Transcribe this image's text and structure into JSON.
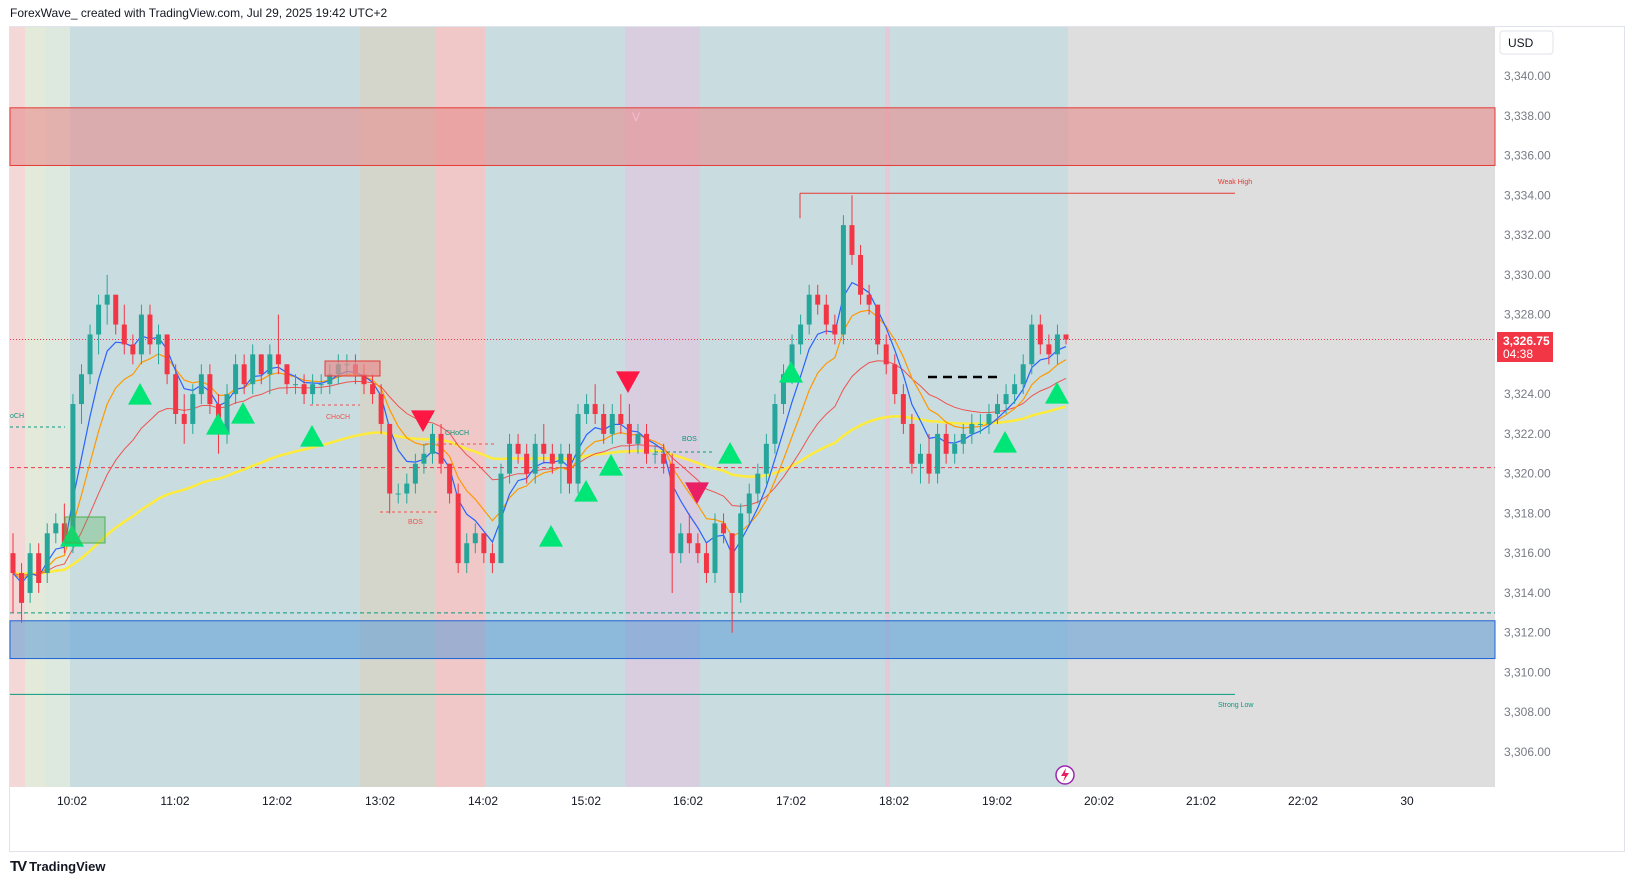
{
  "header": {
    "title": "ForexWave_ created with TradingView.com, Jul 29, 2025 19:42 UTC+2"
  },
  "footer": {
    "logo_text": "TradingView",
    "logo_mark": "TV"
  },
  "currency": "USD",
  "last_price": "3,326.75",
  "countdown": "04:38",
  "colors": {
    "up": "#26a69a",
    "down": "#f23645",
    "ema_fast": "#2962ff",
    "ema_mid": "#ff9800",
    "ema_slow": "#ef5350",
    "ema_long": "#ffeb3b",
    "supply_zone": "#e88c8c",
    "demand_zone": "#5b9bd5",
    "signal_up": "#00e676",
    "signal_down": "#ff1744"
  },
  "annotations": {
    "weak_high": "Weak High",
    "strong_low": "Strong Low",
    "choch_left": "oCH",
    "choch_1": "CHoCH",
    "choch_2": "CHoCH",
    "bos_1": "BOS",
    "bos_2": "BOS",
    "v_mark": "V"
  },
  "chart_data": {
    "type": "candlestick",
    "title": "",
    "y_axis": {
      "ylim": [
        3305,
        3342
      ],
      "ticks": [
        "3,306.00",
        "3,308.00",
        "3,310.00",
        "3,312.00",
        "3,314.00",
        "3,316.00",
        "3,318.00",
        "3,320.00",
        "3,322.00",
        "3,324.00",
        "3,326.00",
        "3,328.00",
        "3,330.00",
        "3,332.00",
        "3,334.00",
        "3,336.00",
        "3,338.00",
        "3,340.00"
      ],
      "tick_values": [
        3306,
        3308,
        3310,
        3312,
        3314,
        3316,
        3318,
        3320,
        3322,
        3324,
        3326,
        3328,
        3330,
        3332,
        3334,
        3336,
        3338,
        3340
      ]
    },
    "x_axis": {
      "ticks": [
        "10:02",
        "11:02",
        "12:02",
        "13:02",
        "14:02",
        "15:02",
        "16:02",
        "17:02",
        "18:02",
        "19:02",
        "20:02",
        "21:02",
        "22:02",
        "30"
      ]
    },
    "zones": [
      {
        "name": "supply",
        "top": 3338.4,
        "bottom": 3335.5
      },
      {
        "name": "demand",
        "top": 3312.6,
        "bottom": 3310.7
      }
    ],
    "levels": [
      {
        "name": "weak-high",
        "value": 3334.1
      },
      {
        "name": "strong-low",
        "value": 3308.9
      },
      {
        "name": "current-price",
        "value": 3326.75
      },
      {
        "name": "red-dashed",
        "value": 3320.3
      },
      {
        "name": "green-dashed",
        "value": 3313.0
      }
    ],
    "candles": [
      [
        3316.0,
        3317.0,
        3313.0,
        3315.0
      ],
      [
        3315.0,
        3315.5,
        3312.5,
        3313.5
      ],
      [
        3314.0,
        3316.5,
        3313.5,
        3316.0
      ],
      [
        3316.0,
        3316.5,
        3314.0,
        3314.5
      ],
      [
        3315.0,
        3317.5,
        3314.5,
        3317.0
      ],
      [
        3317.0,
        3318.0,
        3316.5,
        3317.5
      ],
      [
        3317.5,
        3318.5,
        3316.0,
        3316.5
      ],
      [
        3316.5,
        3324.0,
        3316.0,
        3323.5
      ],
      [
        3323.5,
        3325.5,
        3322.5,
        3325.0
      ],
      [
        3325.0,
        3327.5,
        3324.5,
        3327.0
      ],
      [
        3327.0,
        3329.0,
        3326.0,
        3328.5
      ],
      [
        3328.5,
        3330.0,
        3327.5,
        3329.0
      ],
      [
        3329.0,
        3329.0,
        3327.0,
        3327.5
      ],
      [
        3327.5,
        3328.5,
        3326.0,
        3326.5
      ],
      [
        3326.5,
        3327.0,
        3325.5,
        3326.0
      ],
      [
        3326.0,
        3328.5,
        3325.5,
        3328.0
      ],
      [
        3328.0,
        3328.5,
        3326.0,
        3326.5
      ],
      [
        3326.5,
        3327.5,
        3325.5,
        3327.0
      ],
      [
        3327.0,
        3327.0,
        3324.5,
        3325.0
      ],
      [
        3325.0,
        3325.5,
        3322.5,
        3323.0
      ],
      [
        3323.0,
        3324.0,
        3321.5,
        3322.5
      ],
      [
        3322.5,
        3324.5,
        3322.0,
        3324.0
      ],
      [
        3324.0,
        3325.5,
        3323.5,
        3325.0
      ],
      [
        3325.0,
        3325.5,
        3323.0,
        3323.5
      ],
      [
        3323.5,
        3324.0,
        3321.0,
        3322.0
      ],
      [
        3322.0,
        3324.5,
        3321.5,
        3324.0
      ],
      [
        3324.0,
        3326.0,
        3323.5,
        3325.5
      ],
      [
        3325.5,
        3326.0,
        3324.0,
        3324.5
      ],
      [
        3324.5,
        3326.5,
        3324.0,
        3326.0
      ],
      [
        3326.0,
        3326.0,
        3324.5,
        3325.0
      ],
      [
        3325.0,
        3326.5,
        3324.0,
        3326.0
      ],
      [
        3326.0,
        3328.0,
        3325.0,
        3325.5
      ],
      [
        3325.5,
        3325.5,
        3324.0,
        3324.5
      ],
      [
        3324.5,
        3325.0,
        3324.0,
        3324.5
      ],
      [
        3324.5,
        3325.0,
        3323.5,
        3324.0
      ],
      [
        3324.0,
        3325.0,
        3323.5,
        3324.5
      ],
      [
        3324.5,
        3325.0,
        3324.0,
        3324.5
      ],
      [
        3324.5,
        3325.5,
        3324.0,
        3325.0
      ],
      [
        3325.0,
        3326.0,
        3324.5,
        3325.5
      ],
      [
        3325.5,
        3326.0,
        3325.0,
        3325.5
      ],
      [
        3325.5,
        3326.0,
        3324.5,
        3325.0
      ],
      [
        3325.0,
        3325.5,
        3324.0,
        3324.5
      ],
      [
        3324.5,
        3325.0,
        3323.5,
        3324.0
      ],
      [
        3324.0,
        3324.5,
        3322.0,
        3322.5
      ],
      [
        3322.5,
        3322.5,
        3318.0,
        3319.0
      ],
      [
        3319.0,
        3319.5,
        3318.5,
        3319.0
      ],
      [
        3319.0,
        3320.0,
        3318.5,
        3319.5
      ],
      [
        3319.5,
        3321.0,
        3319.0,
        3320.5
      ],
      [
        3320.5,
        3321.5,
        3320.0,
        3321.0
      ],
      [
        3321.0,
        3322.5,
        3320.5,
        3322.0
      ],
      [
        3322.0,
        3322.5,
        3320.0,
        3320.5
      ],
      [
        3320.5,
        3320.5,
        3318.5,
        3319.0
      ],
      [
        3319.0,
        3319.5,
        3315.0,
        3315.5
      ],
      [
        3315.5,
        3317.0,
        3315.0,
        3316.5
      ],
      [
        3316.5,
        3317.5,
        3316.0,
        3317.0
      ],
      [
        3317.0,
        3317.0,
        3315.5,
        3316.0
      ],
      [
        3316.0,
        3316.5,
        3315.0,
        3315.5
      ],
      [
        3315.5,
        3320.5,
        3315.5,
        3320.0
      ],
      [
        3320.0,
        3322.0,
        3319.5,
        3321.5
      ],
      [
        3321.5,
        3322.0,
        3320.5,
        3321.0
      ],
      [
        3321.0,
        3321.5,
        3319.5,
        3320.0
      ],
      [
        3320.0,
        3322.0,
        3319.5,
        3321.5
      ],
      [
        3321.5,
        3322.5,
        3320.5,
        3321.0
      ],
      [
        3321.0,
        3321.5,
        3320.0,
        3320.5
      ],
      [
        3320.5,
        3321.5,
        3319.0,
        3321.0
      ],
      [
        3321.0,
        3321.5,
        3319.0,
        3319.5
      ],
      [
        3319.5,
        3323.5,
        3319.0,
        3323.0
      ],
      [
        3323.0,
        3324.0,
        3322.5,
        3323.5
      ],
      [
        3323.5,
        3324.5,
        3322.5,
        3323.0
      ],
      [
        3323.0,
        3323.5,
        3321.5,
        3322.0
      ],
      [
        3322.0,
        3323.5,
        3321.5,
        3323.0
      ],
      [
        3323.0,
        3324.0,
        3322.0,
        3322.5
      ],
      [
        3322.5,
        3323.5,
        3321.0,
        3321.5
      ],
      [
        3321.5,
        3322.5,
        3321.0,
        3322.0
      ],
      [
        3322.0,
        3322.5,
        3320.5,
        3321.0
      ],
      [
        3321.0,
        3321.5,
        3320.5,
        3321.0
      ],
      [
        3321.0,
        3321.5,
        3320.0,
        3320.5
      ],
      [
        3320.5,
        3321.0,
        3314.0,
        3316.0
      ],
      [
        3316.0,
        3317.5,
        3315.5,
        3317.0
      ],
      [
        3317.0,
        3318.0,
        3316.0,
        3316.5
      ],
      [
        3316.5,
        3317.0,
        3315.5,
        3316.0
      ],
      [
        3316.0,
        3316.5,
        3314.5,
        3315.0
      ],
      [
        3315.0,
        3318.0,
        3314.5,
        3317.5
      ],
      [
        3317.5,
        3318.0,
        3316.5,
        3317.0
      ],
      [
        3317.0,
        3317.0,
        3312.0,
        3314.0
      ],
      [
        3314.0,
        3318.5,
        3313.5,
        3318.0
      ],
      [
        3318.0,
        3319.5,
        3317.5,
        3319.0
      ],
      [
        3319.0,
        3320.5,
        3318.5,
        3320.0
      ],
      [
        3320.0,
        3322.0,
        3319.5,
        3321.5
      ],
      [
        3321.5,
        3324.0,
        3321.0,
        3323.5
      ],
      [
        3323.5,
        3325.5,
        3323.0,
        3325.0
      ],
      [
        3325.0,
        3327.0,
        3324.5,
        3326.5
      ],
      [
        3326.5,
        3328.0,
        3326.0,
        3327.5
      ],
      [
        3327.5,
        3329.5,
        3327.0,
        3329.0
      ],
      [
        3329.0,
        3329.5,
        3328.0,
        3328.5
      ],
      [
        3328.5,
        3329.0,
        3327.0,
        3327.5
      ],
      [
        3327.5,
        3328.0,
        3326.5,
        3327.0
      ],
      [
        3327.0,
        3333.0,
        3326.5,
        3332.5
      ],
      [
        3332.5,
        3334.0,
        3330.5,
        3331.0
      ],
      [
        3331.0,
        3331.5,
        3328.5,
        3329.0
      ],
      [
        3329.0,
        3329.5,
        3328.0,
        3328.5
      ],
      [
        3328.5,
        3328.5,
        3326.0,
        3326.5
      ],
      [
        3326.5,
        3327.0,
        3325.0,
        3325.5
      ],
      [
        3325.5,
        3326.0,
        3323.5,
        3324.0
      ],
      [
        3324.0,
        3324.5,
        3322.0,
        3322.5
      ],
      [
        3322.5,
        3323.0,
        3320.0,
        3320.5
      ],
      [
        3320.5,
        3321.5,
        3319.5,
        3321.0
      ],
      [
        3321.0,
        3322.0,
        3319.5,
        3320.0
      ],
      [
        3320.0,
        3322.5,
        3319.5,
        3322.0
      ],
      [
        3322.0,
        3322.5,
        3320.5,
        3321.0
      ],
      [
        3321.0,
        3322.0,
        3320.5,
        3321.5
      ],
      [
        3321.5,
        3322.5,
        3321.0,
        3322.0
      ],
      [
        3322.0,
        3323.0,
        3321.5,
        3322.5
      ],
      [
        3322.5,
        3323.0,
        3322.0,
        3322.5
      ],
      [
        3322.5,
        3323.5,
        3322.0,
        3323.0
      ],
      [
        3323.0,
        3324.0,
        3322.5,
        3323.5
      ],
      [
        3323.5,
        3324.5,
        3323.0,
        3324.0
      ],
      [
        3324.0,
        3325.0,
        3323.5,
        3324.5
      ],
      [
        3324.5,
        3326.0,
        3324.0,
        3325.5
      ],
      [
        3325.5,
        3328.0,
        3325.0,
        3327.5
      ],
      [
        3327.5,
        3328.0,
        3326.0,
        3326.5
      ],
      [
        3326.5,
        3327.0,
        3325.5,
        3326.0
      ],
      [
        3326.0,
        3327.5,
        3325.5,
        3327.0
      ],
      [
        3327.0,
        3327.0,
        3326.5,
        3326.75
      ]
    ]
  }
}
